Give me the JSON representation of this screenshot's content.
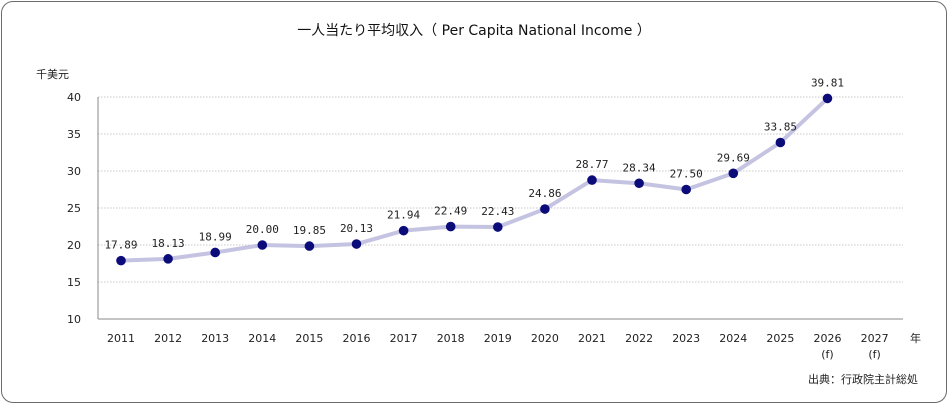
{
  "chart_data": {
    "type": "line",
    "title": "一人当たり平均収入（ Per Capita National Income ）",
    "ylabel": "千美元",
    "xlabel": "年",
    "ylim": [
      10,
      40
    ],
    "yticks": [
      10,
      15,
      20,
      25,
      30,
      35,
      40
    ],
    "categories": [
      "2011",
      "2012",
      "2013",
      "2014",
      "2015",
      "2016",
      "2017",
      "2018",
      "2019",
      "2020",
      "2021",
      "2022",
      "2023",
      "2024",
      "2025",
      "2026",
      "2027"
    ],
    "category_sublabels": [
      "",
      "",
      "",
      "",
      "",
      "",
      "",
      "",
      "",
      "",
      "",
      "",
      "",
      "",
      "",
      "(f)",
      "(f)"
    ],
    "series": [
      {
        "values": [
          17.89,
          18.13,
          18.99,
          20.0,
          19.85,
          20.13,
          21.94,
          22.49,
          22.43,
          24.86,
          28.77,
          28.34,
          27.5,
          29.69,
          33.85,
          39.81,
          null
        ],
        "labels": [
          "17.89",
          "18.13",
          "18.99",
          "20.00",
          "19.85",
          "20.13",
          "21.94",
          "22.49",
          "22.43",
          "24.86",
          "28.77",
          "28.34",
          "27.50",
          "29.69",
          "33.85",
          "39.81",
          ""
        ],
        "line_color": "#c4c4e2",
        "marker_color": "#0b0b7a"
      }
    ],
    "grid": true,
    "legend": "none",
    "source": "出典：行政院主計総処"
  }
}
